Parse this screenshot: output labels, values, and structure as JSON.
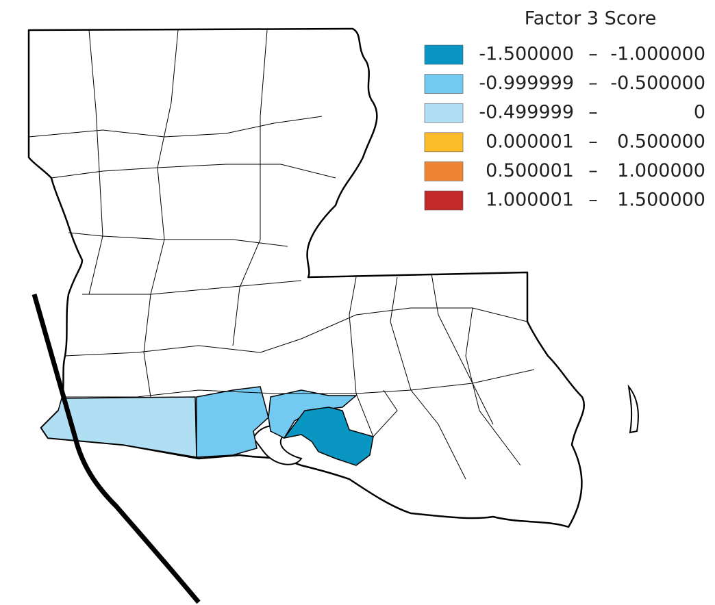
{
  "legend": {
    "title": "Factor 3 Score",
    "separator": "–",
    "items": [
      {
        "low": "-1.500000",
        "high": "-1.000000",
        "color": "#0a96c3"
      },
      {
        "low": "-0.999999",
        "high": "-0.500000",
        "color": "#74c9f0"
      },
      {
        "low": "-0.499999",
        "high": "0",
        "color": "#b0dff3"
      },
      {
        "low": "0.000001",
        "high": "0.500000",
        "color": "#fbbd2a"
      },
      {
        "low": "0.500001",
        "high": "1.000000",
        "color": "#ef8434"
      },
      {
        "low": "1.000001",
        "high": "1.500000",
        "color": "#c12a28"
      }
    ]
  }
}
